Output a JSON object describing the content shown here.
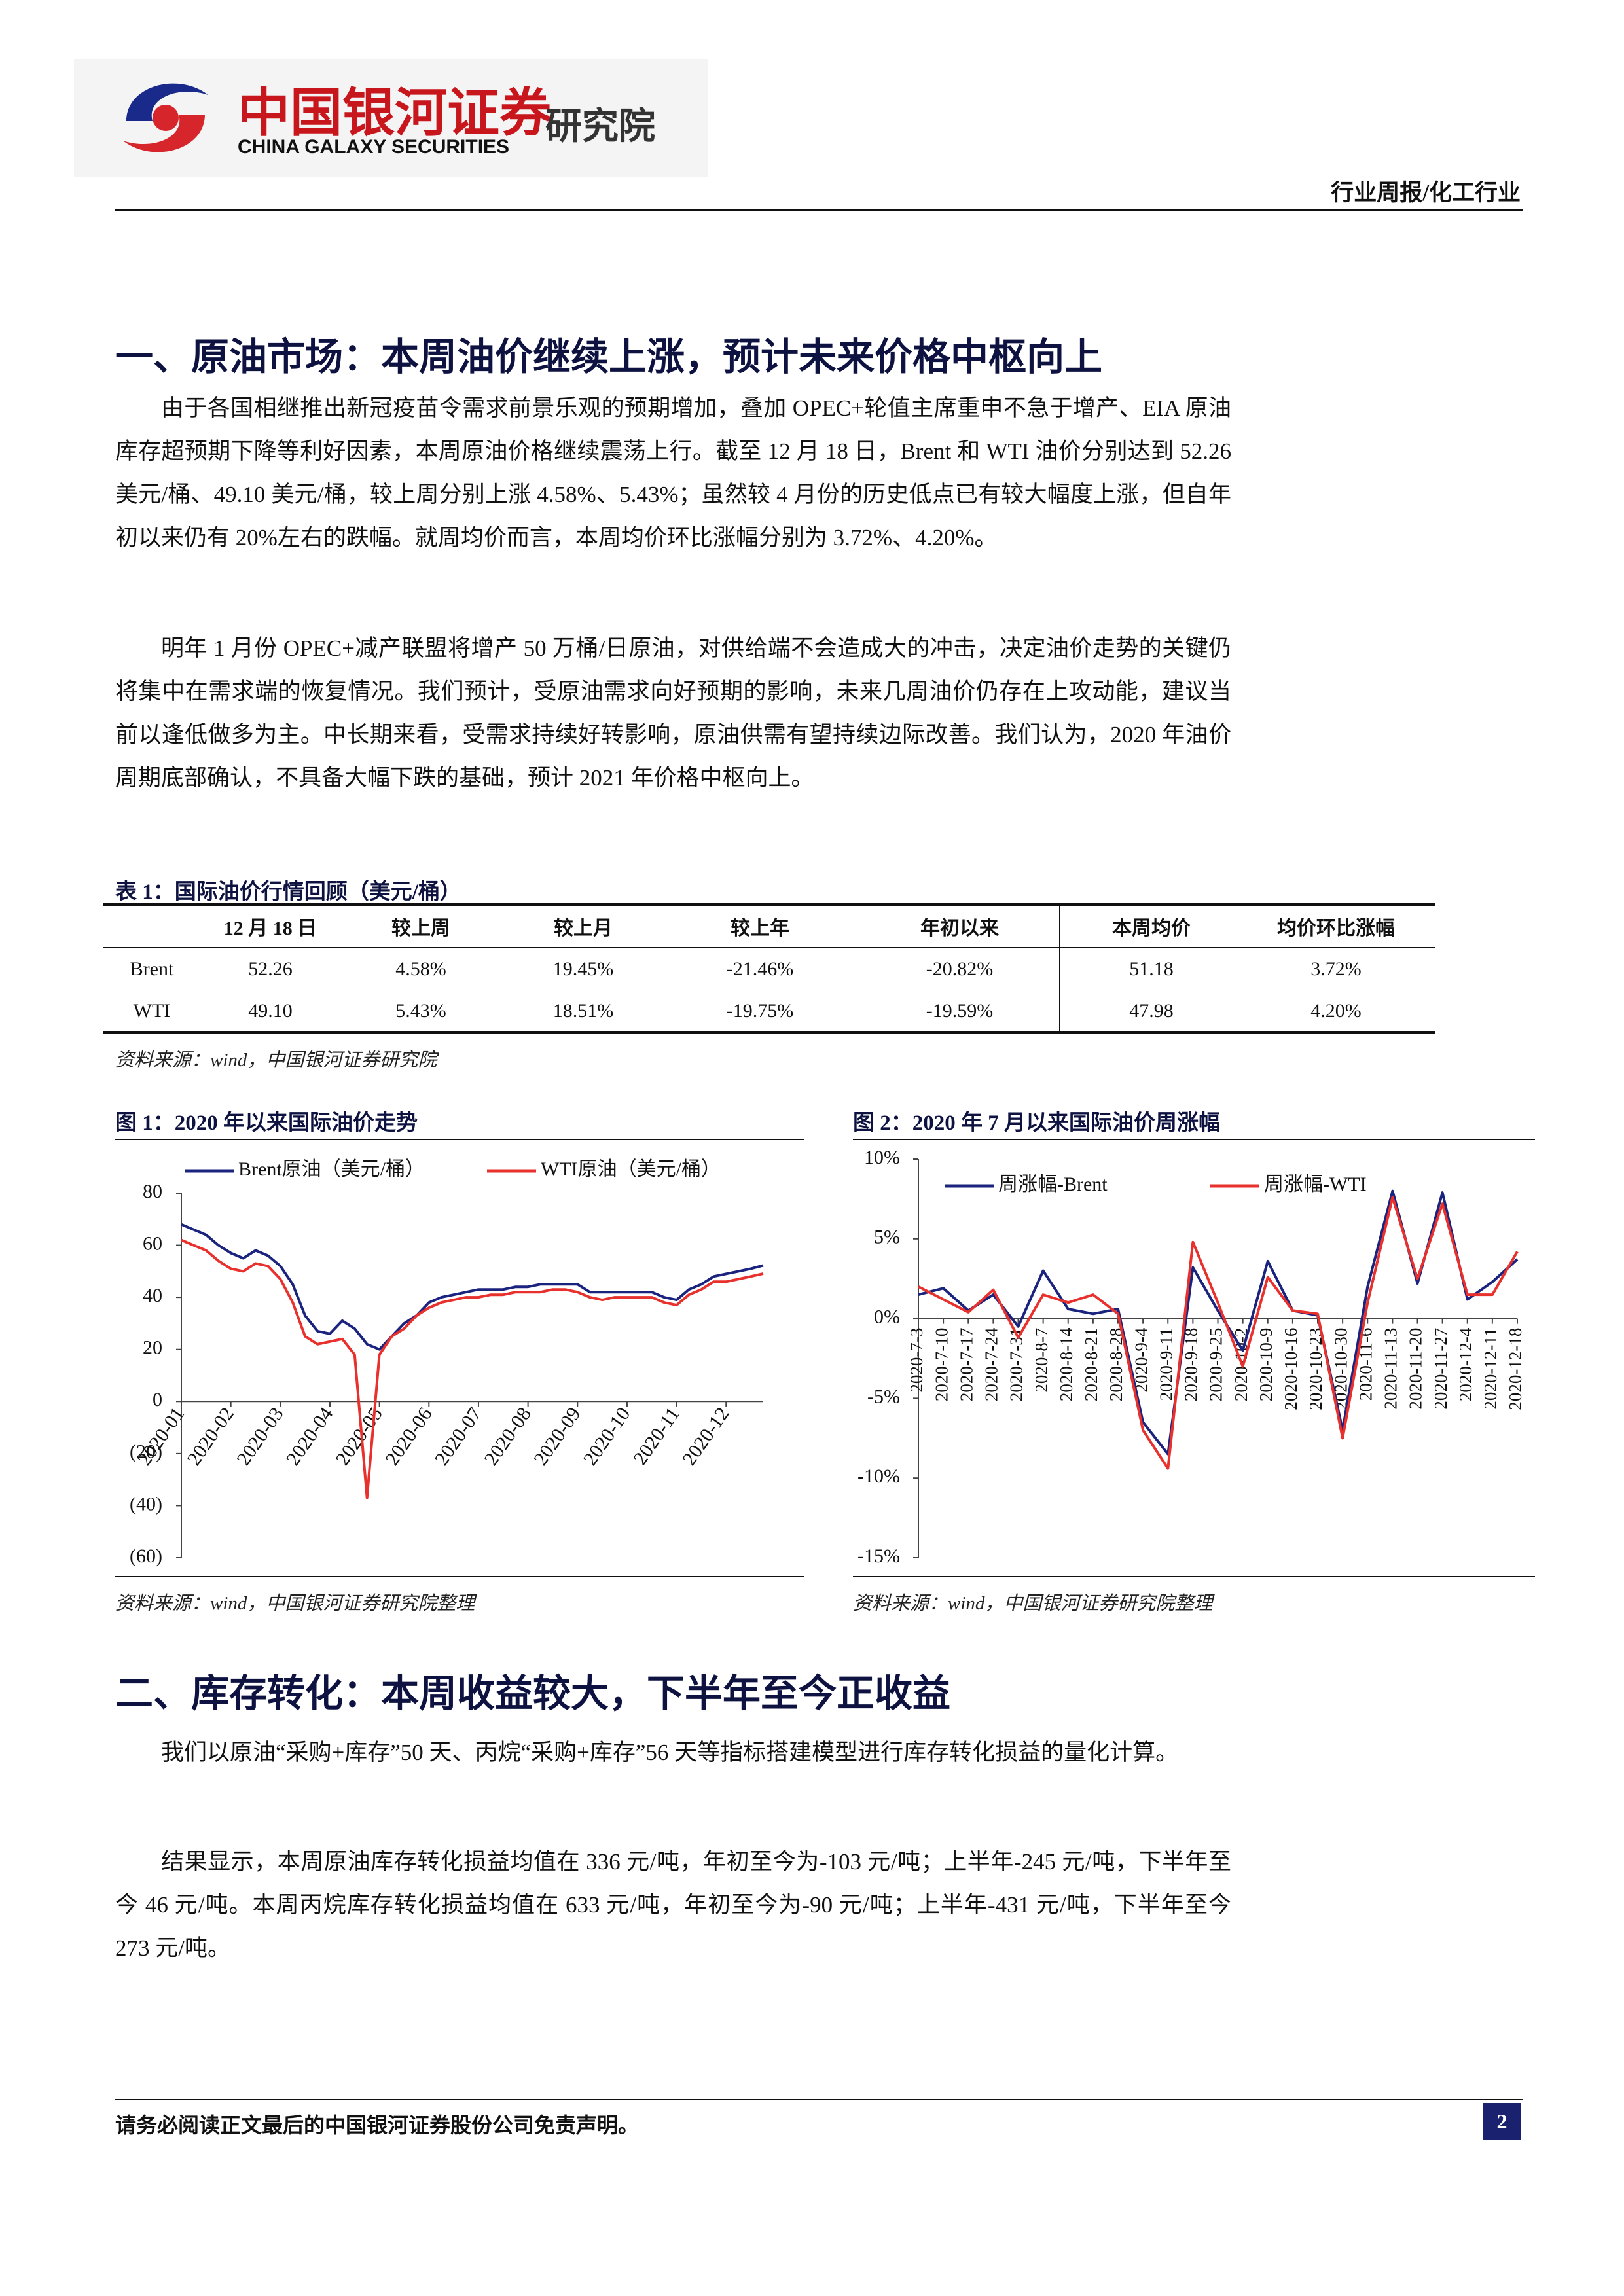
{
  "header": {
    "logo_cn": "中国银河证券",
    "logo_en": "CHINA GALAXY SECURITIES",
    "logo_suffix": "研究院",
    "category": "行业周报/化工行业"
  },
  "sections": [
    {
      "title": "一、原油市场：本周油价继续上涨，预计未来价格中枢向上",
      "paragraphs": [
        "由于各国相继推出新冠疫苗令需求前景乐观的预期增加，叠加 OPEC+轮值主席重申不急于增产、EIA 原油库存超预期下降等利好因素，本周原油价格继续震荡上行。截至 12 月 18 日，Brent 和 WTI 油价分别达到 52.26 美元/桶、49.10 美元/桶，较上周分别上涨 4.58%、5.43%；虽然较 4 月份的历史低点已有较大幅度上涨，但自年初以来仍有 20%左右的跌幅。就周均价而言，本周均价环比涨幅分别为 3.72%、4.20%。",
        "明年 1 月份 OPEC+减产联盟将增产 50 万桶/日原油，对供给端不会造成大的冲击，决定油价走势的关键仍将集中在需求端的恢复情况。我们预计，受原油需求向好预期的影响，未来几周油价仍存在上攻动能，建议当前以逢低做多为主。中长期来看，受需求持续好转影响，原油供需有望持续边际改善。我们认为，2020 年油价周期底部确认，不具备大幅下跌的基础，预计 2021 年价格中枢向上。"
      ]
    },
    {
      "title": "二、库存转化：本周收益较大，下半年至今正收益",
      "paragraphs": [
        "我们以原油“采购+库存”50 天、丙烷“采购+库存”56 天等指标搭建模型进行库存转化损益的量化计算。",
        "结果显示，本周原油库存转化损益均值在 336 元/吨，年初至今为-103 元/吨；上半年-245 元/吨，下半年至今 46 元/吨。本周丙烷库存转化损益均值在 633 元/吨，年初至今为-90 元/吨；上半年-431 元/吨，下半年至今 273 元/吨。"
      ]
    }
  ],
  "table": {
    "caption": "表 1：国际油价行情回顾（美元/桶）",
    "columns": [
      "12 月 18 日",
      "较上周",
      "较上月",
      "较上年",
      "年初以来",
      "本周均价",
      "均价环比涨幅"
    ],
    "rows": [
      {
        "name": "Brent",
        "cells": [
          "52.26",
          "4.58%",
          "19.45%",
          "-21.46%",
          "-20.82%",
          "51.18",
          "3.72%"
        ]
      },
      {
        "name": "WTI",
        "cells": [
          "49.10",
          "5.43%",
          "18.51%",
          "-19.75%",
          "-19.59%",
          "47.98",
          "4.20%"
        ]
      }
    ],
    "source": "资料来源：wind，中国银河证券研究院"
  },
  "chart_data": [
    {
      "type": "line",
      "title": "图 1：2020 年以来国际油价走势",
      "source": "资料来源：wind，中国银河证券研究院整理",
      "categories": [
        "2020-01",
        null,
        null,
        null,
        "2020-02",
        null,
        null,
        null,
        "2020-03",
        null,
        null,
        null,
        "2020-04",
        null,
        null,
        null,
        "2020-05",
        null,
        null,
        null,
        "2020-06",
        null,
        null,
        null,
        "2020-07",
        null,
        null,
        null,
        "2020-08",
        null,
        null,
        null,
        "2020-09",
        null,
        null,
        null,
        "2020-10",
        null,
        null,
        null,
        "2020-11",
        null,
        null,
        null,
        "2020-12",
        null,
        null,
        null
      ],
      "series": [
        {
          "name": "Brent原油（美元/桶）",
          "color": "#1a237e",
          "values": [
            68,
            66,
            64,
            60,
            57,
            55,
            58,
            56,
            52,
            45,
            33,
            27,
            26,
            31,
            28,
            22,
            20,
            25,
            30,
            33,
            38,
            40,
            41,
            42,
            43,
            43,
            43,
            44,
            44,
            45,
            45,
            45,
            45,
            42,
            42,
            42,
            42,
            42,
            42,
            40,
            39,
            43,
            45,
            48,
            49,
            50,
            51,
            52.26
          ]
        },
        {
          "name": "WTI原油（美元/桶）",
          "color": "#e8302c",
          "values": [
            62,
            60,
            58,
            54,
            51,
            50,
            53,
            52,
            47,
            38,
            25,
            22,
            23,
            24,
            18,
            -37,
            18,
            25,
            28,
            33,
            36,
            38,
            39,
            40,
            40,
            41,
            41,
            42,
            42,
            42,
            43,
            43,
            42,
            40,
            39,
            40,
            40,
            40,
            40,
            38,
            37,
            41,
            43,
            46,
            46,
            47,
            48,
            49.1
          ]
        }
      ],
      "ylim": [
        -60,
        80
      ],
      "yticks": [
        80,
        60,
        40,
        20,
        0,
        {
          "value": -20,
          "label": "(20)"
        },
        {
          "value": -40,
          "label": "(40)"
        },
        {
          "value": -60,
          "label": "(60)"
        }
      ],
      "legend": "top",
      "grid": false
    },
    {
      "type": "line",
      "title": "图 2：2020 年 7 月以来国际油价周涨幅",
      "source": "资料来源：wind，中国银河证券研究院整理",
      "categories": [
        "2020-7-3",
        "2020-7-10",
        "2020-7-17",
        "2020-7-24",
        "2020-7-31",
        "2020-8-7",
        "2020-8-14",
        "2020-8-21",
        "2020-8-28",
        "2020-9-4",
        "2020-9-11",
        "2020-9-18",
        "2020-9-25",
        "2020-10-2",
        "2020-10-9",
        "2020-10-16",
        "2020-10-23",
        "2020-10-30",
        "2020-11-6",
        "2020-11-13",
        "2020-11-20",
        "2020-11-27",
        "2020-12-4",
        "2020-12-11",
        "2020-12-18"
      ],
      "series": [
        {
          "name": "周涨幅-Brent",
          "color": "#1a237e",
          "values": [
            1.5,
            1.9,
            0.5,
            1.5,
            -0.5,
            3.0,
            0.6,
            0.3,
            0.6,
            -6.5,
            -8.5,
            3.2,
            0.5,
            -2.0,
            3.6,
            0.5,
            0.2,
            -7.0,
            2.0,
            8.0,
            2.2,
            7.9,
            1.2,
            2.3,
            3.72
          ]
        },
        {
          "name": "周涨幅-WTI",
          "color": "#e8302c",
          "values": [
            2.0,
            1.2,
            0.4,
            1.8,
            -1.2,
            1.5,
            1.0,
            1.5,
            0.3,
            -7.0,
            -9.4,
            4.8,
            1.0,
            -3.0,
            2.6,
            0.5,
            0.3,
            -7.5,
            1.0,
            7.6,
            2.5,
            7.2,
            1.5,
            1.5,
            4.2
          ]
        }
      ],
      "ylim": [
        -15,
        10
      ],
      "yticks": [
        {
          "value": 10,
          "label": "10%"
        },
        {
          "value": 5,
          "label": "5%"
        },
        {
          "value": 0,
          "label": "0%"
        },
        {
          "value": -5,
          "label": "-5%"
        },
        {
          "value": -10,
          "label": "-10%"
        },
        {
          "value": -15,
          "label": "-15%"
        }
      ],
      "legend": "top",
      "grid": false
    }
  ],
  "footer": {
    "disclaimer": "请务必阅读正文最后的中国银河证券股份公司免责声明。",
    "page": "2"
  }
}
